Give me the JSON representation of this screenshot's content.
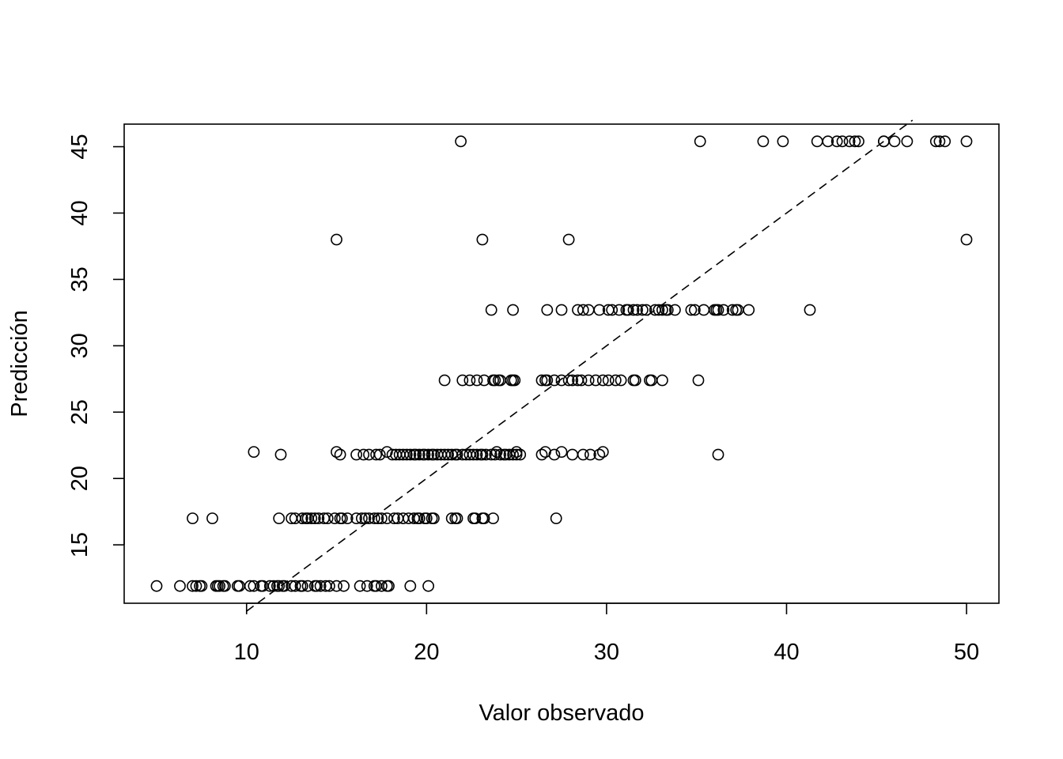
{
  "chart_data": {
    "type": "scatter",
    "title": "",
    "xlabel": "Valor observado",
    "ylabel": "Predicción",
    "xlim": [
      3.2,
      51.8
    ],
    "ylim": [
      10.6,
      46.7
    ],
    "xticks": [
      10,
      20,
      30,
      40,
      50
    ],
    "yticks": [
      15,
      20,
      25,
      30,
      35,
      40,
      45
    ],
    "grid": false,
    "legend": "none",
    "colors": {
      "point_stroke": "#000000",
      "reference_line": "#000000",
      "background": "#ffffff"
    },
    "reference_line": {
      "style": "dashed",
      "from": [
        10.0,
        10.0
      ],
      "to": [
        47.0,
        47.0
      ]
    },
    "series": [
      {
        "marker": "open-circle",
        "points": [
          [
            5.0,
            11.9
          ],
          [
            6.3,
            11.9
          ],
          [
            7.0,
            11.9
          ],
          [
            7.2,
            11.9
          ],
          [
            7.4,
            11.9
          ],
          [
            7.5,
            11.9
          ],
          [
            8.3,
            11.9
          ],
          [
            8.4,
            11.9
          ],
          [
            8.5,
            11.9
          ],
          [
            8.7,
            11.9
          ],
          [
            8.8,
            11.9
          ],
          [
            9.5,
            11.9
          ],
          [
            9.6,
            11.9
          ],
          [
            10.2,
            11.9
          ],
          [
            10.4,
            11.9
          ],
          [
            10.8,
            11.9
          ],
          [
            10.9,
            11.9
          ],
          [
            11.3,
            11.9
          ],
          [
            11.5,
            11.9
          ],
          [
            11.7,
            11.9
          ],
          [
            11.8,
            11.9
          ],
          [
            12.0,
            11.9
          ],
          [
            12.1,
            11.9
          ],
          [
            12.5,
            11.9
          ],
          [
            12.7,
            11.9
          ],
          [
            13.0,
            11.9
          ],
          [
            13.1,
            11.9
          ],
          [
            13.4,
            11.9
          ],
          [
            13.8,
            11.9
          ],
          [
            13.9,
            11.9
          ],
          [
            14.1,
            11.9
          ],
          [
            14.4,
            11.9
          ],
          [
            14.6,
            11.9
          ],
          [
            15.0,
            11.9
          ],
          [
            15.4,
            11.9
          ],
          [
            16.3,
            11.9
          ],
          [
            16.7,
            11.9
          ],
          [
            17.1,
            11.9
          ],
          [
            17.2,
            11.9
          ],
          [
            17.5,
            11.9
          ],
          [
            17.8,
            11.9
          ],
          [
            17.9,
            11.9
          ],
          [
            19.1,
            11.9
          ],
          [
            20.1,
            11.9
          ],
          [
            7.0,
            17.0
          ],
          [
            8.1,
            17.0
          ],
          [
            11.8,
            17.0
          ],
          [
            12.5,
            17.0
          ],
          [
            12.7,
            17.0
          ],
          [
            13.1,
            17.0
          ],
          [
            13.3,
            17.0
          ],
          [
            13.4,
            17.0
          ],
          [
            13.6,
            17.0
          ],
          [
            13.8,
            17.0
          ],
          [
            14.0,
            17.0
          ],
          [
            14.3,
            17.0
          ],
          [
            14.5,
            17.0
          ],
          [
            14.9,
            17.0
          ],
          [
            15.2,
            17.0
          ],
          [
            15.3,
            17.0
          ],
          [
            15.6,
            17.0
          ],
          [
            16.1,
            17.0
          ],
          [
            16.4,
            17.0
          ],
          [
            16.6,
            17.0
          ],
          [
            16.8,
            17.0
          ],
          [
            17.1,
            17.0
          ],
          [
            17.3,
            17.0
          ],
          [
            17.5,
            17.0
          ],
          [
            17.8,
            17.0
          ],
          [
            18.2,
            17.0
          ],
          [
            18.4,
            17.0
          ],
          [
            18.7,
            17.0
          ],
          [
            19.0,
            17.0
          ],
          [
            19.3,
            17.0
          ],
          [
            19.5,
            17.0
          ],
          [
            19.6,
            17.0
          ],
          [
            19.9,
            17.0
          ],
          [
            20.0,
            17.0
          ],
          [
            20.3,
            17.0
          ],
          [
            20.4,
            17.0
          ],
          [
            21.4,
            17.0
          ],
          [
            21.6,
            17.0
          ],
          [
            21.7,
            17.0
          ],
          [
            22.6,
            17.0
          ],
          [
            22.7,
            17.0
          ],
          [
            23.1,
            17.0
          ],
          [
            23.2,
            17.0
          ],
          [
            23.7,
            17.0
          ],
          [
            27.2,
            17.0
          ],
          [
            10.4,
            22.0
          ],
          [
            11.9,
            21.8
          ],
          [
            15.0,
            22.0
          ],
          [
            15.2,
            21.8
          ],
          [
            16.1,
            21.8
          ],
          [
            16.5,
            21.8
          ],
          [
            16.8,
            21.8
          ],
          [
            17.2,
            21.8
          ],
          [
            17.4,
            21.8
          ],
          [
            17.8,
            22.0
          ],
          [
            18.1,
            21.8
          ],
          [
            18.3,
            21.8
          ],
          [
            18.5,
            21.8
          ],
          [
            18.7,
            21.8
          ],
          [
            18.9,
            21.8
          ],
          [
            19.1,
            21.8
          ],
          [
            19.3,
            21.8
          ],
          [
            19.4,
            21.8
          ],
          [
            19.6,
            21.8
          ],
          [
            19.8,
            21.8
          ],
          [
            19.9,
            21.8
          ],
          [
            20.1,
            21.8
          ],
          [
            20.3,
            21.8
          ],
          [
            20.4,
            21.8
          ],
          [
            20.6,
            21.8
          ],
          [
            20.8,
            21.8
          ],
          [
            21.0,
            21.8
          ],
          [
            21.2,
            21.8
          ],
          [
            21.4,
            21.8
          ],
          [
            21.6,
            21.8
          ],
          [
            21.7,
            21.8
          ],
          [
            22.0,
            21.8
          ],
          [
            22.2,
            21.8
          ],
          [
            22.4,
            21.8
          ],
          [
            22.6,
            21.8
          ],
          [
            22.8,
            21.8
          ],
          [
            23.0,
            21.8
          ],
          [
            23.1,
            21.8
          ],
          [
            23.3,
            21.8
          ],
          [
            23.6,
            21.8
          ],
          [
            23.8,
            21.8
          ],
          [
            23.9,
            22.0
          ],
          [
            24.1,
            21.8
          ],
          [
            24.3,
            21.8
          ],
          [
            24.4,
            21.8
          ],
          [
            24.6,
            21.8
          ],
          [
            24.8,
            21.8
          ],
          [
            25.0,
            22.0
          ],
          [
            25.0,
            21.8
          ],
          [
            25.2,
            21.8
          ],
          [
            26.4,
            21.8
          ],
          [
            26.6,
            22.0
          ],
          [
            27.1,
            21.8
          ],
          [
            27.5,
            22.0
          ],
          [
            28.1,
            21.8
          ],
          [
            28.7,
            21.8
          ],
          [
            29.1,
            21.8
          ],
          [
            29.6,
            21.8
          ],
          [
            29.8,
            22.0
          ],
          [
            36.2,
            21.8
          ],
          [
            21.0,
            27.4
          ],
          [
            22.0,
            27.4
          ],
          [
            22.4,
            27.4
          ],
          [
            22.8,
            27.4
          ],
          [
            23.2,
            27.4
          ],
          [
            23.7,
            27.4
          ],
          [
            23.8,
            27.4
          ],
          [
            24.0,
            27.4
          ],
          [
            24.1,
            27.4
          ],
          [
            24.7,
            27.4
          ],
          [
            24.8,
            27.4
          ],
          [
            24.9,
            27.4
          ],
          [
            26.4,
            27.4
          ],
          [
            26.6,
            27.4
          ],
          [
            26.7,
            27.4
          ],
          [
            27.1,
            27.4
          ],
          [
            27.5,
            27.4
          ],
          [
            27.9,
            27.4
          ],
          [
            28.1,
            27.4
          ],
          [
            28.4,
            27.4
          ],
          [
            28.6,
            27.4
          ],
          [
            29.0,
            27.4
          ],
          [
            29.4,
            27.4
          ],
          [
            29.8,
            27.4
          ],
          [
            30.1,
            27.4
          ],
          [
            30.5,
            27.4
          ],
          [
            30.8,
            27.4
          ],
          [
            31.5,
            27.4
          ],
          [
            31.6,
            27.4
          ],
          [
            32.4,
            27.4
          ],
          [
            32.5,
            27.4
          ],
          [
            33.1,
            27.4
          ],
          [
            35.1,
            27.4
          ],
          [
            23.6,
            32.7
          ],
          [
            24.8,
            32.7
          ],
          [
            26.7,
            32.7
          ],
          [
            27.5,
            32.7
          ],
          [
            28.4,
            32.7
          ],
          [
            28.7,
            32.7
          ],
          [
            29.0,
            32.7
          ],
          [
            29.6,
            32.7
          ],
          [
            30.1,
            32.7
          ],
          [
            30.3,
            32.7
          ],
          [
            30.7,
            32.7
          ],
          [
            31.1,
            32.7
          ],
          [
            31.2,
            32.7
          ],
          [
            31.5,
            32.7
          ],
          [
            31.7,
            32.7
          ],
          [
            32.0,
            32.7
          ],
          [
            32.2,
            32.7
          ],
          [
            32.7,
            32.7
          ],
          [
            32.9,
            32.7
          ],
          [
            33.1,
            32.7
          ],
          [
            33.3,
            32.7
          ],
          [
            33.4,
            32.7
          ],
          [
            33.8,
            32.7
          ],
          [
            34.7,
            32.7
          ],
          [
            34.9,
            32.7
          ],
          [
            35.4,
            32.7
          ],
          [
            36.0,
            32.7
          ],
          [
            36.1,
            32.7
          ],
          [
            36.2,
            32.7
          ],
          [
            36.5,
            32.7
          ],
          [
            37.0,
            32.7
          ],
          [
            37.2,
            32.7
          ],
          [
            37.3,
            32.7
          ],
          [
            37.9,
            32.7
          ],
          [
            41.3,
            32.7
          ],
          [
            15.0,
            38.0
          ],
          [
            23.1,
            38.0
          ],
          [
            27.9,
            38.0
          ],
          [
            50.0,
            38.0
          ],
          [
            21.9,
            45.4
          ],
          [
            35.2,
            45.4
          ],
          [
            38.7,
            45.4
          ],
          [
            39.8,
            45.4
          ],
          [
            41.7,
            45.4
          ],
          [
            42.3,
            45.4
          ],
          [
            42.8,
            45.4
          ],
          [
            43.1,
            45.4
          ],
          [
            43.5,
            45.4
          ],
          [
            43.8,
            45.4
          ],
          [
            44.0,
            45.4
          ],
          [
            45.4,
            45.4
          ],
          [
            45.4,
            45.4
          ],
          [
            46.0,
            45.4
          ],
          [
            46.7,
            45.4
          ],
          [
            48.3,
            45.4
          ],
          [
            48.5,
            45.4
          ],
          [
            48.8,
            45.4
          ],
          [
            50.0,
            45.4
          ]
        ]
      }
    ]
  }
}
